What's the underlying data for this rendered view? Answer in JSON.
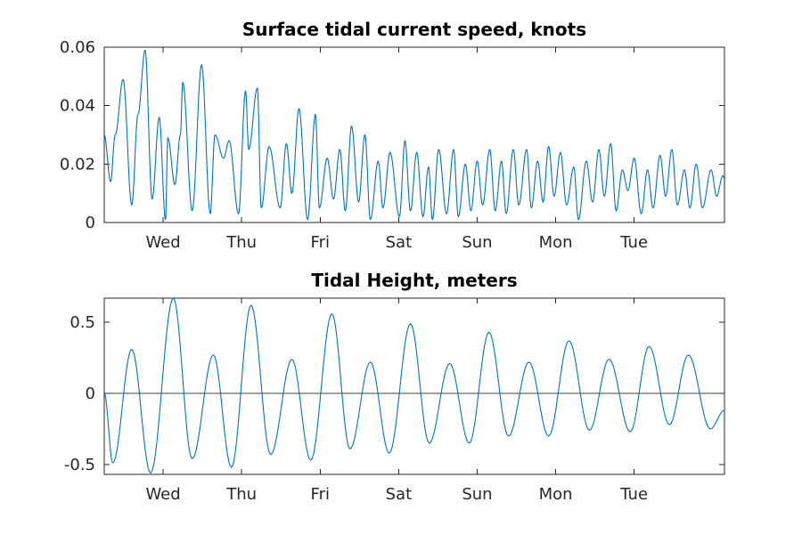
{
  "colors": {
    "series": "#0072BD",
    "axis": "#262626",
    "zero_line": "#404040"
  },
  "chart_data": [
    {
      "type": "line",
      "title": "Surface tidal current speed, knots",
      "xlabel": "",
      "ylabel": "",
      "xlim": [
        0,
        7.9
      ],
      "ylim": [
        0,
        0.06
      ],
      "yticks": [
        0,
        0.02,
        0.04,
        0.06
      ],
      "ytick_labels": [
        "0",
        "0.02",
        "0.04",
        "0.06"
      ],
      "xticks": [
        0.75,
        1.75,
        2.75,
        3.75,
        4.75,
        5.75,
        6.75
      ],
      "xtick_labels": [
        "Wed",
        "Thu",
        "Fri",
        "Sat",
        "Sun",
        "Mon",
        "Tue"
      ],
      "grid": false,
      "series": [
        {
          "x": [
            0.0,
            0.08,
            0.14,
            0.24,
            0.35,
            0.43,
            0.52,
            0.61,
            0.7,
            0.78,
            0.81,
            0.9,
            0.97,
            1.0,
            1.12,
            1.24,
            1.35,
            1.41,
            1.52,
            1.59,
            1.71,
            1.8,
            1.84,
            1.95,
            2.0,
            2.1,
            2.24,
            2.32,
            2.39,
            2.48,
            2.59,
            2.69,
            2.74,
            2.84,
            2.92,
            3.0,
            3.07,
            3.15,
            3.24,
            3.32,
            3.39,
            3.49,
            3.55,
            3.64,
            3.76,
            3.83,
            3.9,
            3.98,
            4.06,
            4.13,
            4.18,
            4.26,
            4.36,
            4.45,
            4.51,
            4.6,
            4.67,
            4.75,
            4.82,
            4.91,
            4.98,
            5.06,
            5.12,
            5.21,
            5.28,
            5.38,
            5.44,
            5.52,
            5.59,
            5.66,
            5.73,
            5.81,
            5.89,
            5.98,
            6.04,
            6.14,
            6.22,
            6.3,
            6.37,
            6.45,
            6.52,
            6.6,
            6.67,
            6.75,
            6.84,
            6.92,
            6.99,
            7.08,
            7.15,
            7.23,
            7.3,
            7.39,
            7.46,
            7.54,
            7.62,
            7.73,
            7.8,
            7.88,
            7.9
          ],
          "y": [
            0.03,
            0.014,
            0.03,
            0.049,
            0.006,
            0.037,
            0.059,
            0.008,
            0.036,
            0.001,
            0.029,
            0.013,
            0.03,
            0.048,
            0.004,
            0.054,
            0.003,
            0.03,
            0.022,
            0.028,
            0.003,
            0.045,
            0.025,
            0.046,
            0.005,
            0.026,
            0.005,
            0.027,
            0.01,
            0.039,
            0.001,
            0.037,
            0.005,
            0.022,
            0.008,
            0.025,
            0.004,
            0.033,
            0.007,
            0.03,
            0.001,
            0.021,
            0.005,
            0.024,
            0.002,
            0.028,
            0.004,
            0.024,
            0.002,
            0.019,
            0.001,
            0.025,
            0.003,
            0.025,
            0.002,
            0.02,
            0.004,
            0.021,
            0.006,
            0.025,
            0.004,
            0.021,
            0.003,
            0.025,
            0.006,
            0.025,
            0.005,
            0.021,
            0.007,
            0.026,
            0.009,
            0.024,
            0.006,
            0.019,
            0.001,
            0.021,
            0.007,
            0.025,
            0.009,
            0.027,
            0.004,
            0.018,
            0.011,
            0.022,
            0.003,
            0.018,
            0.005,
            0.023,
            0.009,
            0.025,
            0.006,
            0.018,
            0.005,
            0.02,
            0.005,
            0.018,
            0.009,
            0.016,
            0.015
          ]
        }
      ]
    },
    {
      "type": "line",
      "title": "Tidal Height, meters",
      "xlabel": "",
      "ylabel": "",
      "xlim": [
        0,
        7.9
      ],
      "ylim": [
        -0.57,
        0.67
      ],
      "yticks": [
        -0.5,
        0,
        0.5
      ],
      "ytick_labels": [
        "-0.5",
        "0",
        "0.5"
      ],
      "xticks": [
        0.75,
        1.75,
        2.75,
        3.75,
        4.75,
        5.75,
        6.75
      ],
      "xtick_labels": [
        "Wed",
        "Thu",
        "Fri",
        "Sat",
        "Sun",
        "Mon",
        "Tue"
      ],
      "grid": false,
      "zero_line": true,
      "series": [
        {
          "x": [
            0.0,
            0.11,
            0.35,
            0.59,
            0.88,
            1.12,
            1.39,
            1.62,
            1.87,
            2.12,
            2.39,
            2.63,
            2.9,
            3.13,
            3.39,
            3.63,
            3.9,
            4.14,
            4.4,
            4.65,
            4.9,
            5.15,
            5.41,
            5.66,
            5.92,
            6.18,
            6.43,
            6.7,
            6.94,
            7.2,
            7.44,
            7.72,
            7.9
          ],
          "y": [
            0.0,
            -0.49,
            0.31,
            -0.56,
            0.67,
            -0.46,
            0.27,
            -0.52,
            0.62,
            -0.43,
            0.24,
            -0.47,
            0.56,
            -0.39,
            0.22,
            -0.42,
            0.49,
            -0.35,
            0.21,
            -0.35,
            0.43,
            -0.3,
            0.22,
            -0.3,
            0.37,
            -0.26,
            0.24,
            -0.27,
            0.33,
            -0.22,
            0.27,
            -0.25,
            -0.12
          ]
        }
      ]
    }
  ]
}
